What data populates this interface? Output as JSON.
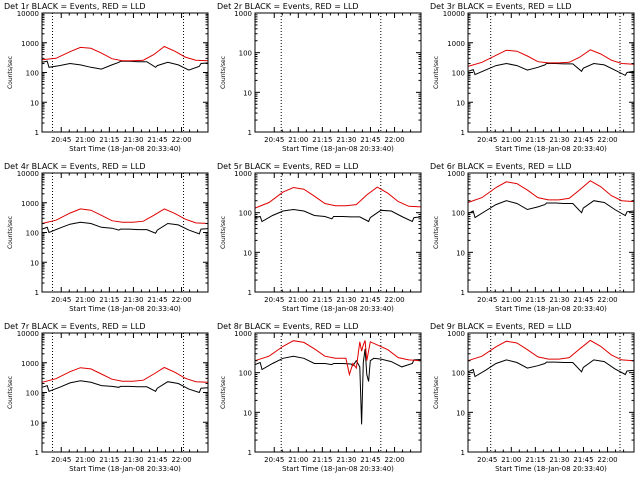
{
  "window_title": "",
  "y_axis_label": "Counts/sec",
  "x_axis_label": "Start Time (18-Jan-08 20:33:40)",
  "chart_data": [
    {
      "type": "line",
      "title": "Det 1r BLACK = Events, RED = LLD",
      "ylabel": "Counts/sec",
      "xlabel": "Start Time (18-Jan-08 20:33:40)",
      "yscale": "log",
      "ylim": [
        1,
        10000
      ],
      "xticks": [
        "20:45",
        "21:00",
        "21:15",
        "21:30",
        "21:45",
        "22:00"
      ],
      "xlim": [
        0,
        95
      ],
      "series": [
        {
          "name": "Events",
          "color": "#000000",
          "x": [
            0,
            3,
            4,
            10,
            16,
            22,
            28,
            34,
            40,
            44,
            45,
            50,
            55,
            60,
            65,
            66,
            72,
            78,
            84,
            90,
            91,
            95
          ],
          "y": [
            220,
            240,
            150,
            170,
            200,
            180,
            150,
            130,
            180,
            220,
            240,
            240,
            230,
            230,
            150,
            170,
            220,
            180,
            120,
            160,
            200,
            210
          ]
        },
        {
          "name": "LLD",
          "color": "#e00000",
          "x": [
            0,
            8,
            16,
            22,
            28,
            34,
            40,
            46,
            52,
            58,
            64,
            70,
            76,
            82,
            88,
            95
          ],
          "y": [
            270,
            300,
            500,
            700,
            650,
            450,
            290,
            250,
            250,
            260,
            400,
            750,
            520,
            330,
            260,
            250
          ]
        }
      ],
      "dotted_x": [
        6,
        81
      ],
      "grid": false
    },
    {
      "type": "line",
      "title": "Det 2r BLACK = Events, RED = LLD",
      "ylabel": "Counts/sec",
      "xlabel": "Start Time (18-Jan-08 20:33:40)",
      "yscale": "log",
      "ylim": [
        1,
        1000
      ],
      "xticks": [
        "20:45",
        "21:00",
        "21:15",
        "21:30",
        "21:45",
        "22:00"
      ],
      "xlim": [
        0,
        95
      ],
      "series": [],
      "dotted_x": [
        15,
        72
      ],
      "grid": false
    },
    {
      "type": "line",
      "title": "Det 3r BLACK = Events, RED = LLD",
      "ylabel": "Counts/sec",
      "xlabel": "Start Time (18-Jan-08 20:33:40)",
      "yscale": "log",
      "ylim": [
        1,
        10000
      ],
      "xticks": [
        "20:45",
        "21:00",
        "21:15",
        "21:30",
        "21:45",
        "22:00"
      ],
      "xlim": [
        0,
        95
      ],
      "series": [
        {
          "name": "Events",
          "color": "#000000",
          "x": [
            0,
            3,
            4,
            10,
            16,
            22,
            28,
            34,
            40,
            44,
            45,
            50,
            55,
            60,
            65,
            66,
            72,
            78,
            84,
            90,
            91,
            95
          ],
          "y": [
            110,
            125,
            85,
            120,
            170,
            200,
            170,
            120,
            150,
            180,
            200,
            200,
            195,
            195,
            110,
            140,
            200,
            180,
            120,
            80,
            100,
            110
          ]
        },
        {
          "name": "LLD",
          "color": "#e00000",
          "x": [
            0,
            8,
            16,
            22,
            28,
            34,
            40,
            46,
            52,
            58,
            64,
            70,
            76,
            82,
            88,
            95
          ],
          "y": [
            160,
            220,
            380,
            560,
            520,
            360,
            230,
            210,
            210,
            220,
            330,
            580,
            420,
            260,
            200,
            190
          ]
        }
      ],
      "dotted_x": [
        13,
        87
      ],
      "grid": false
    },
    {
      "type": "line",
      "title": "Det 4r BLACK = Events, RED = LLD",
      "ylabel": "Counts/sec",
      "xlabel": "Start Time (18-Jan-08 20:33:40)",
      "yscale": "log",
      "ylim": [
        1,
        10000
      ],
      "xticks": [
        "20:45",
        "21:00",
        "21:15",
        "21:30",
        "21:45",
        "22:00"
      ],
      "xlim": [
        0,
        95
      ],
      "series": [
        {
          "name": "Events",
          "color": "#000000",
          "x": [
            0,
            3,
            4,
            10,
            16,
            22,
            28,
            34,
            40,
            44,
            45,
            50,
            55,
            60,
            65,
            66,
            72,
            78,
            84,
            90,
            91,
            95
          ],
          "y": [
            130,
            150,
            100,
            140,
            190,
            220,
            200,
            150,
            140,
            120,
            130,
            130,
            125,
            125,
            95,
            120,
            200,
            180,
            120,
            90,
            130,
            135
          ]
        },
        {
          "name": "LLD",
          "color": "#e00000",
          "x": [
            0,
            8,
            16,
            22,
            28,
            34,
            40,
            46,
            52,
            58,
            64,
            70,
            76,
            82,
            88,
            95
          ],
          "y": [
            200,
            260,
            450,
            620,
            560,
            380,
            250,
            220,
            220,
            240,
            380,
            620,
            440,
            280,
            210,
            200
          ]
        }
      ],
      "dotted_x": [
        6,
        81
      ],
      "grid": false
    },
    {
      "type": "line",
      "title": "Det 5r BLACK = Events, RED = LLD",
      "ylabel": "Counts/sec",
      "xlabel": "Start Time (18-Jan-08 20:33:40)",
      "yscale": "log",
      "ylim": [
        1,
        1000
      ],
      "xticks": [
        "20:45",
        "21:00",
        "21:15",
        "21:30",
        "21:45",
        "22:00"
      ],
      "xlim": [
        0,
        95
      ],
      "series": [
        {
          "name": "Events",
          "color": "#000000",
          "x": [
            0,
            3,
            4,
            10,
            16,
            22,
            28,
            34,
            40,
            44,
            45,
            50,
            55,
            60,
            65,
            66,
            72,
            78,
            84,
            90,
            91,
            95
          ],
          "y": [
            75,
            80,
            60,
            85,
            110,
            120,
            110,
            85,
            80,
            70,
            80,
            80,
            78,
            78,
            60,
            75,
            115,
            110,
            80,
            60,
            75,
            78
          ]
        },
        {
          "name": "LLD",
          "color": "#e00000",
          "x": [
            0,
            8,
            16,
            22,
            28,
            34,
            40,
            46,
            52,
            58,
            64,
            70,
            76,
            82,
            88,
            95
          ],
          "y": [
            130,
            180,
            330,
            430,
            390,
            260,
            170,
            150,
            150,
            160,
            280,
            440,
            310,
            190,
            145,
            140
          ]
        }
      ],
      "dotted_x": [
        15,
        72
      ],
      "grid": false
    },
    {
      "type": "line",
      "title": "Det 6r BLACK = Events, RED = LLD",
      "ylabel": "Counts/sec",
      "xlabel": "Start Time (18-Jan-08 20:33:40)",
      "yscale": "log",
      "ylim": [
        1,
        1000
      ],
      "xticks": [
        "20:45",
        "21:00",
        "21:15",
        "21:30",
        "21:45",
        "22:00"
      ],
      "xlim": [
        0,
        95
      ],
      "series": [
        {
          "name": "Events",
          "color": "#000000",
          "x": [
            0,
            3,
            4,
            10,
            16,
            22,
            28,
            34,
            40,
            44,
            45,
            50,
            55,
            60,
            65,
            66,
            72,
            78,
            84,
            90,
            91,
            95
          ],
          "y": [
            95,
            110,
            75,
            110,
            160,
            200,
            170,
            120,
            140,
            160,
            175,
            175,
            170,
            170,
            100,
            130,
            200,
            180,
            120,
            85,
            105,
            110
          ]
        },
        {
          "name": "LLD",
          "color": "#e00000",
          "x": [
            0,
            8,
            16,
            22,
            28,
            34,
            40,
            46,
            52,
            58,
            64,
            70,
            76,
            82,
            88,
            95
          ],
          "y": [
            180,
            240,
            430,
            600,
            540,
            370,
            240,
            210,
            210,
            230,
            380,
            640,
            450,
            270,
            200,
            190
          ]
        }
      ],
      "dotted_x": [
        13,
        87
      ],
      "grid": false
    },
    {
      "type": "line",
      "title": "Det 7r BLACK = Events, RED = LLD",
      "ylabel": "Counts/sec",
      "xlabel": "Start Time (18-Jan-08 20:33:40)",
      "yscale": "log",
      "ylim": [
        1,
        10000
      ],
      "xticks": [
        "20:45",
        "21:00",
        "21:15",
        "21:30",
        "21:45",
        "22:00"
      ],
      "xlim": [
        0,
        95
      ],
      "series": [
        {
          "name": "Events",
          "color": "#000000",
          "x": [
            0,
            3,
            4,
            10,
            16,
            22,
            28,
            34,
            40,
            44,
            45,
            50,
            55,
            60,
            65,
            66,
            72,
            78,
            84,
            90,
            91,
            95
          ],
          "y": [
            150,
            170,
            110,
            150,
            210,
            250,
            220,
            170,
            160,
            150,
            160,
            160,
            155,
            155,
            110,
            140,
            230,
            200,
            130,
            100,
            140,
            145
          ]
        },
        {
          "name": "LLD",
          "color": "#e00000",
          "x": [
            0,
            8,
            16,
            22,
            28,
            34,
            40,
            46,
            52,
            58,
            64,
            70,
            76,
            82,
            88,
            95
          ],
          "y": [
            220,
            290,
            500,
            680,
            620,
            420,
            280,
            240,
            240,
            260,
            420,
            690,
            480,
            300,
            230,
            220
          ]
        }
      ],
      "dotted_x": [
        6,
        81
      ],
      "grid": false
    },
    {
      "type": "line",
      "title": "Det 8r BLACK = Events, RED = LLD",
      "ylabel": "Counts/sec",
      "xlabel": "Start Time (18-Jan-08 20:33:40)",
      "yscale": "log",
      "ylim": [
        1,
        1000
      ],
      "xticks": [
        "20:45",
        "21:00",
        "21:15",
        "21:30",
        "21:45",
        "22:00"
      ],
      "xlim": [
        0,
        95
      ],
      "series": [
        {
          "name": "Events",
          "color": "#000000",
          "x": [
            0,
            3,
            4,
            10,
            16,
            22,
            28,
            34,
            40,
            44,
            45,
            50,
            55,
            56,
            58,
            60,
            61,
            62,
            63,
            64,
            65,
            66,
            68,
            72,
            78,
            84,
            90,
            91,
            95
          ],
          "y": [
            160,
            180,
            120,
            170,
            230,
            260,
            230,
            170,
            170,
            160,
            170,
            170,
            165,
            150,
            200,
            140,
            5,
            180,
            400,
            90,
            60,
            200,
            230,
            220,
            190,
            140,
            170,
            210,
            215
          ]
        },
        {
          "name": "LLD",
          "color": "#e00000",
          "x": [
            0,
            8,
            16,
            22,
            28,
            34,
            40,
            46,
            52,
            54,
            56,
            58,
            60,
            61,
            62,
            63,
            64,
            66,
            70,
            76,
            82,
            88,
            95
          ],
          "y": [
            200,
            260,
            460,
            640,
            580,
            400,
            260,
            230,
            230,
            90,
            170,
            130,
            600,
            350,
            500,
            650,
            200,
            600,
            500,
            380,
            240,
            210,
            200
          ]
        }
      ],
      "dotted_x": [
        15,
        72
      ],
      "grid": false
    },
    {
      "type": "line",
      "title": "Det 9r BLACK = Events, RED = LLD",
      "ylabel": "Counts/sec",
      "xlabel": "Start Time (18-Jan-08 20:33:40)",
      "yscale": "log",
      "ylim": [
        1,
        1000
      ],
      "xticks": [
        "20:45",
        "21:00",
        "21:15",
        "21:30",
        "21:45",
        "22:00"
      ],
      "xlim": [
        0,
        95
      ],
      "series": [
        {
          "name": "Events",
          "color": "#000000",
          "x": [
            0,
            3,
            4,
            10,
            16,
            22,
            28,
            34,
            40,
            44,
            45,
            50,
            55,
            60,
            65,
            66,
            72,
            78,
            84,
            90,
            91,
            95
          ],
          "y": [
            105,
            120,
            80,
            115,
            170,
            210,
            180,
            130,
            150,
            170,
            185,
            185,
            180,
            180,
            105,
            135,
            210,
            190,
            125,
            90,
            110,
            115
          ]
        },
        {
          "name": "LLD",
          "color": "#e00000",
          "x": [
            0,
            8,
            16,
            22,
            28,
            34,
            40,
            46,
            52,
            58,
            64,
            70,
            76,
            82,
            88,
            95
          ],
          "y": [
            200,
            260,
            450,
            620,
            560,
            380,
            250,
            220,
            220,
            240,
            400,
            650,
            460,
            280,
            210,
            200
          ]
        }
      ],
      "dotted_x": [
        13,
        87
      ],
      "grid": false
    }
  ]
}
